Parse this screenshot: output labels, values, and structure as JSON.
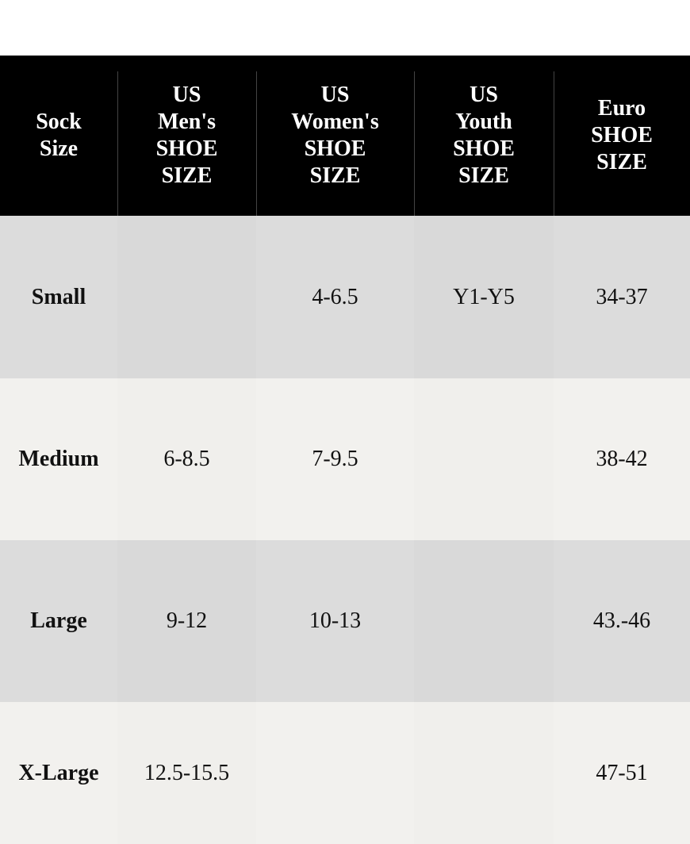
{
  "table": {
    "header": [
      [
        "Sock",
        "Size"
      ],
      [
        "US",
        "Men's",
        "SHOE",
        "SIZE"
      ],
      [
        "US",
        "Women's",
        "SHOE",
        "SIZE"
      ],
      [
        "US",
        "Youth",
        "SHOE",
        "SIZE"
      ],
      [
        "Euro",
        "SHOE",
        "SIZE"
      ]
    ],
    "rows": [
      [
        "Small",
        null,
        "4-6.5",
        "Y1-Y5",
        "34-37"
      ],
      [
        "Medium",
        "6-8.5",
        "7-9.5",
        null,
        "38-42"
      ],
      [
        "Large",
        "9-12",
        "10-13",
        null,
        "43.-46"
      ],
      [
        "X-Large",
        "12.5-15.5",
        null,
        null,
        "47-51"
      ]
    ]
  }
}
